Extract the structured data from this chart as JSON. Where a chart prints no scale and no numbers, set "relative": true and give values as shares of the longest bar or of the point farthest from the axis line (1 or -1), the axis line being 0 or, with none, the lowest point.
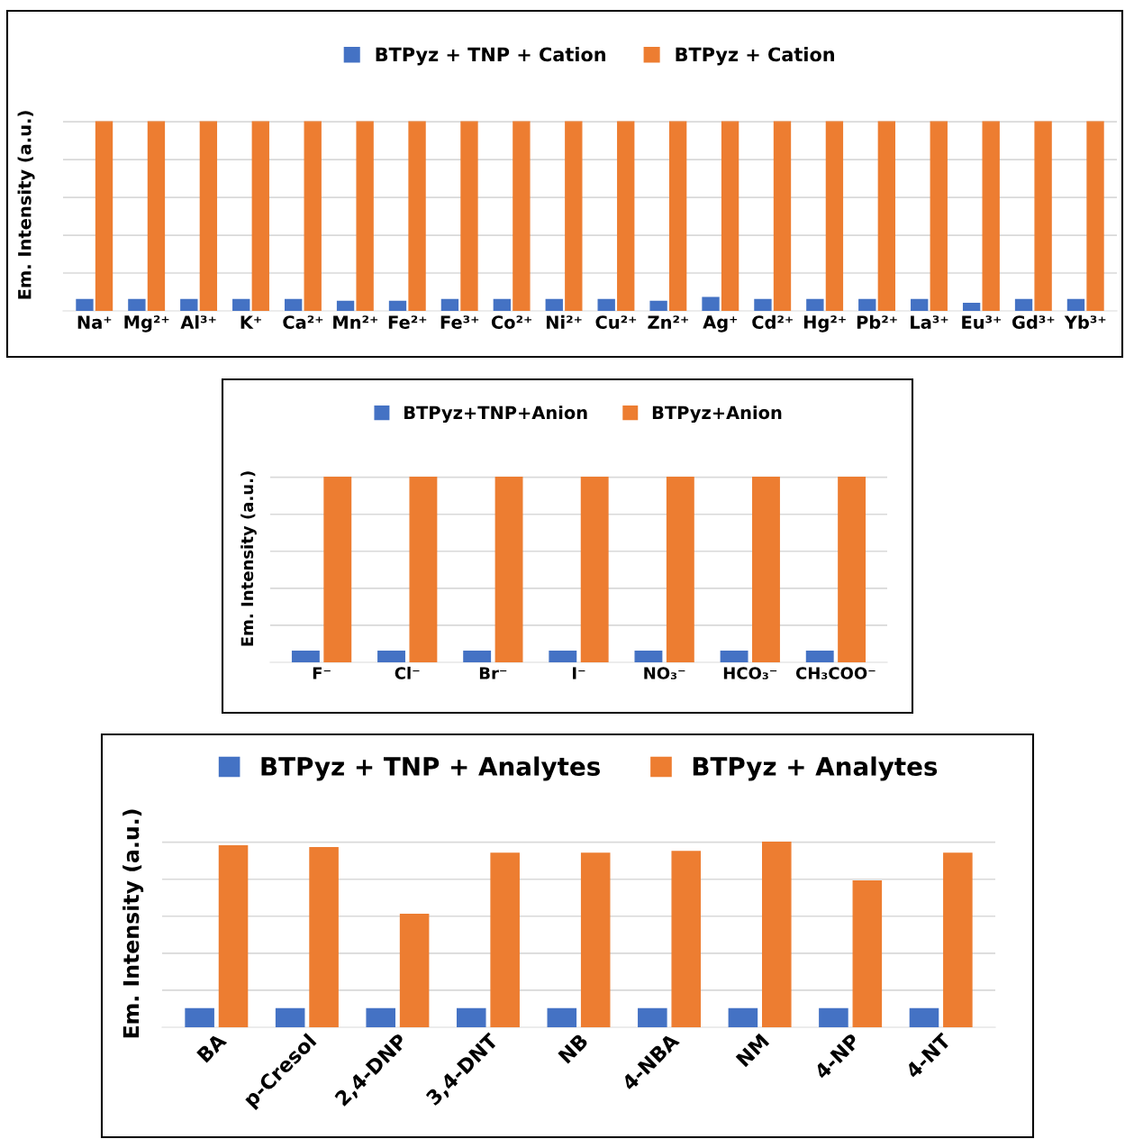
{
  "chart_data": [
    {
      "type": "bar",
      "relative": true,
      "ylabel": "Em. Intensity (a.u.)",
      "legend": "top",
      "grid": "y",
      "categories": [
        "Na⁺",
        "Mg²⁺",
        "Al³⁺",
        "K⁺",
        "Ca²⁺",
        "Mn²⁺",
        "Fe²⁺",
        "Fe³⁺",
        "Co²⁺",
        "Ni²⁺",
        "Cu²⁺",
        "Zn²⁺",
        "Ag⁺",
        "Cd²⁺",
        "Hg²⁺",
        "Pb²⁺",
        "La³⁺",
        "Eu³⁺",
        "Gd³⁺",
        "Yb³⁺"
      ],
      "series": [
        {
          "name": "BTPyz + TNP + Cation",
          "color": "#4472c4",
          "values": [
            0.06,
            0.06,
            0.06,
            0.06,
            0.06,
            0.05,
            0.05,
            0.06,
            0.06,
            0.06,
            0.06,
            0.05,
            0.07,
            0.06,
            0.06,
            0.06,
            0.06,
            0.04,
            0.06,
            0.06
          ]
        },
        {
          "name": "BTPyz + Cation",
          "color": "#ed7d31",
          "values": [
            1,
            1,
            1,
            1,
            1,
            1,
            1,
            1,
            1,
            1,
            1,
            1,
            1,
            1,
            1,
            1,
            1,
            1,
            1,
            1
          ]
        }
      ]
    },
    {
      "type": "bar",
      "relative": true,
      "ylabel": "Em. Intensity (a.u.)",
      "legend": "top",
      "grid": "y",
      "categories": [
        "F⁻",
        "Cl⁻",
        "Br⁻",
        "I⁻",
        "NO₃⁻",
        "HCO₃⁻",
        "CH₃COO⁻"
      ],
      "series": [
        {
          "name": "BTPyz+TNP+Anion",
          "color": "#4472c4",
          "values": [
            0.06,
            0.06,
            0.06,
            0.06,
            0.06,
            0.06,
            0.06
          ]
        },
        {
          "name": "BTPyz+Anion",
          "color": "#ed7d31",
          "values": [
            1,
            1,
            1,
            1,
            1,
            1,
            1
          ]
        }
      ]
    },
    {
      "type": "bar",
      "relative": true,
      "ylabel": "Em. Intensity (a.u.)",
      "legend": "top",
      "grid": "y",
      "categories": [
        "BA",
        "p-Cresol",
        "2,4-DNP",
        "3,4-DNT",
        "NB",
        "4-NBA",
        "NM",
        "4-NP",
        "4-NT"
      ],
      "series": [
        {
          "name": "BTPyz + TNP + Analytes",
          "color": "#4472c4",
          "values": [
            0.1,
            0.1,
            0.1,
            0.1,
            0.1,
            0.1,
            0.1,
            0.1,
            0.1
          ]
        },
        {
          "name": "BTPyz + Analytes",
          "color": "#ed7d31",
          "values": [
            0.98,
            0.97,
            0.61,
            0.94,
            0.94,
            0.95,
            1,
            0.79,
            0.94
          ]
        }
      ]
    }
  ]
}
